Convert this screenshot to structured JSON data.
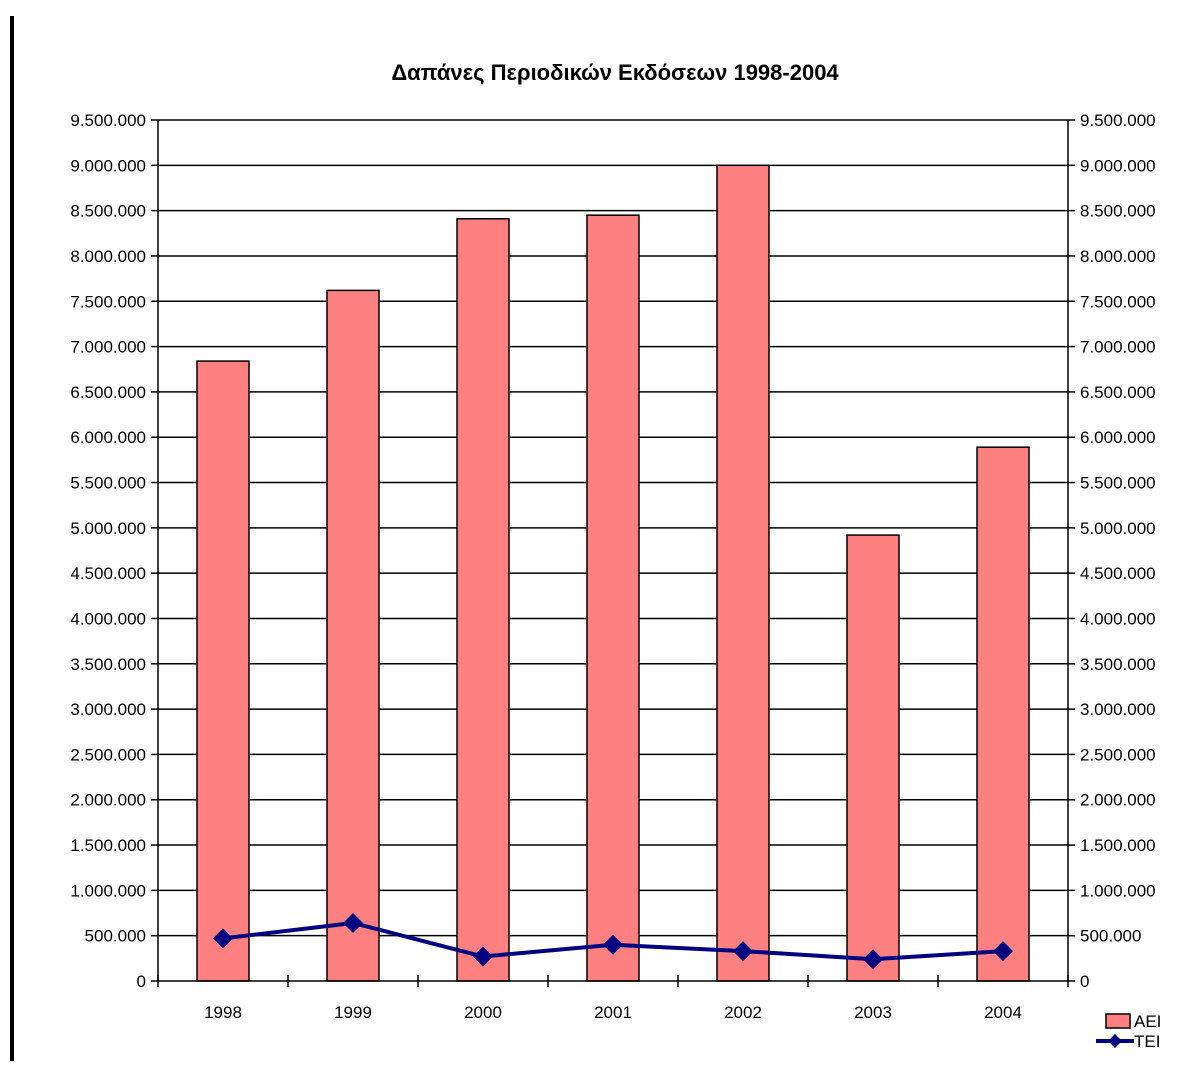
{
  "chart_data": {
    "type": "bar",
    "title": "Δαπάνες Περιοδικών Εκδόσεων 1998-2004",
    "xlabel": "",
    "ylabel": "",
    "categories": [
      "1998",
      "1999",
      "2000",
      "2001",
      "2002",
      "2003",
      "2004"
    ],
    "ylim": [
      0,
      9500000
    ],
    "ytick_step": 500000,
    "yticks_left": [
      "0",
      "500.000",
      "1.000.000",
      "1.500.000",
      "2.000.000",
      "2.500.000",
      "3.000.000",
      "3.500.000",
      "4.000.000",
      "4.500.000",
      "5.000.000",
      "5.500.000",
      "6.000.000",
      "6.500.000",
      "7.000.000",
      "7.500.000",
      "8.000.000",
      "8.500.000",
      "9.000.000",
      "9.500.000"
    ],
    "yticks_right": [
      "0",
      "500.000",
      "1.000.000",
      "1.500.000",
      "2.000.000",
      "2.500.000",
      "3.000.000",
      "3.500.000",
      "4.000.000",
      "4.500.000",
      "5.000.000",
      "5.500.000",
      "6.000.000",
      "6.500.000",
      "7.000.000",
      "7.500.000",
      "8.000.000",
      "8.500.000",
      "9.000.000",
      "9.500.000"
    ],
    "grid": true,
    "legend_position": "bottom-right",
    "series": [
      {
        "name": "ΑΕΙ",
        "kind": "bar",
        "color": "#ff8080",
        "values": [
          6840000,
          7620000,
          8410000,
          8450000,
          9000000,
          4920000,
          5890000
        ]
      },
      {
        "name": "ΤΕΙ",
        "kind": "line",
        "color": "#000080",
        "values": [
          470000,
          640000,
          270000,
          400000,
          330000,
          240000,
          330000
        ]
      }
    ]
  }
}
